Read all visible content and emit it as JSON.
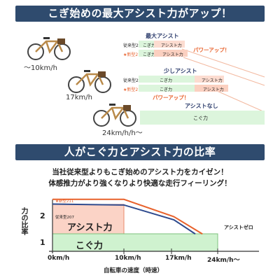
{
  "sec1": {
    "title": "こぎ始めの最大アシスト力がアップ！",
    "speeds": [
      "〜10km/h",
      "17km/h",
      "24km/h/h〜"
    ],
    "max": {
      "heading": "最大アシスト",
      "old_label": "従来型207",
      "new_label": "★新型211",
      "kogi": "こぎ力",
      "assist": "アシスト力",
      "callout": "パワーアップ！"
    },
    "small": {
      "heading": "少しアシスト",
      "old_label": "従来型207",
      "new_label": "★新型211",
      "kogi": "こぎ力",
      "assist": "アシスト力",
      "callout": "パワーアップ！"
    },
    "none": {
      "heading": "アシストなし",
      "kogi": "こぐ力"
    }
  },
  "sec2": {
    "title": "人がこぐ力とアシスト力の比率",
    "lines": [
      "当社従来型よりもこぎ始めのアシスト力をカイゼン！",
      "体感推力がより強くなりより快適な走行フィーリング！"
    ]
  },
  "chart_data": {
    "type": "line",
    "ylabel": "力の比率",
    "xlabel": "自転車の速度（時速）",
    "yticks": [
      "2",
      "1"
    ],
    "xticks": [
      "0km/h",
      "10km/h",
      "17km/h",
      "24km/h〜"
    ],
    "series": [
      {
        "name": "★新型211",
        "color": "#e8622c",
        "x": [
          0,
          10,
          17,
          21
        ],
        "y": [
          2.15,
          2.15,
          1.6,
          1.05
        ]
      },
      {
        "name": "従来型207",
        "color": "#2f4b8e",
        "x": [
          0,
          10,
          17,
          20
        ],
        "y": [
          2.0,
          1.97,
          1.5,
          1.05
        ]
      }
    ],
    "regions": {
      "assist": "アシスト力",
      "kogi": "こぐ力"
    },
    "assist_zero": "アシストゼロ",
    "colors": {
      "assist": "#fbd3c6",
      "kogi": "#cff2cf"
    }
  }
}
